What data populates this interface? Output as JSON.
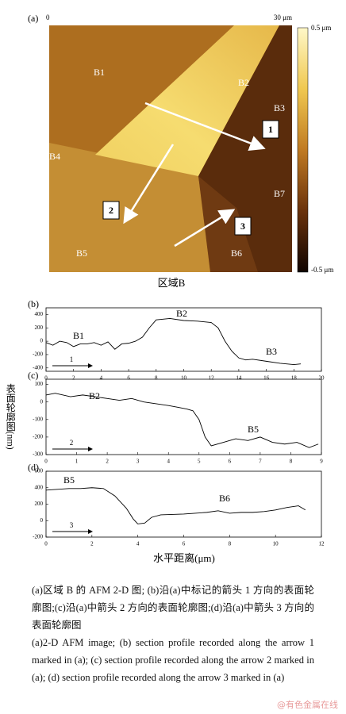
{
  "figure": {
    "panel_label": "(a)",
    "x_start": "0",
    "x_end": "30 μm",
    "colorbar_max": "0.5 μm",
    "colorbar_min": "-0.5 μm",
    "regions": [
      "B1",
      "B2",
      "B3",
      "B4",
      "B5",
      "B6",
      "B7"
    ],
    "arrows": [
      "1",
      "2",
      "3"
    ],
    "image_caption": "区域B"
  },
  "chart_data": [
    {
      "type": "line",
      "panel_label": "(b)",
      "annotations": [
        "B1",
        "B2",
        "B3"
      ],
      "arrow_label": "1",
      "x": [
        0,
        0.5,
        1,
        1.5,
        2,
        2.5,
        3,
        3.5,
        4,
        4.5,
        5,
        5.5,
        6,
        6.5,
        7,
        7.5,
        8,
        9,
        10,
        11,
        12,
        12.5,
        13,
        13.5,
        14,
        14.5,
        15,
        16,
        17,
        18,
        18.5
      ],
      "series": [
        {
          "color": "#000000",
          "values": [
            -20,
            -60,
            0,
            -20,
            -80,
            -40,
            -40,
            -20,
            -60,
            -10,
            -120,
            -40,
            -30,
            0,
            60,
            200,
            320,
            340,
            310,
            300,
            280,
            200,
            0,
            -150,
            -250,
            -280,
            -270,
            -300,
            -330,
            -350,
            -340
          ]
        }
      ],
      "xlim": [
        0,
        20
      ],
      "xticks": [
        0,
        2,
        4,
        6,
        8,
        10,
        12,
        14,
        16,
        18,
        20
      ],
      "ylim": [
        -450,
        500
      ],
      "yticks": [
        400,
        200,
        0,
        -200,
        -400
      ]
    },
    {
      "type": "line",
      "panel_label": "(c)",
      "annotations": [
        "B2",
        "B5"
      ],
      "arrow_label": "2",
      "x": [
        0,
        0.3,
        0.8,
        1.2,
        1.6,
        2,
        2.4,
        2.8,
        3.2,
        3.6,
        4,
        4.3,
        4.6,
        4.8,
        5,
        5.2,
        5.4,
        5.8,
        6.2,
        6.6,
        7,
        7.4,
        7.8,
        8.2,
        8.6,
        8.9
      ],
      "series": [
        {
          "color": "#000000",
          "values": [
            40,
            50,
            30,
            40,
            30,
            20,
            10,
            20,
            0,
            -10,
            -20,
            -30,
            -40,
            -50,
            -100,
            -200,
            -250,
            -230,
            -210,
            -220,
            -200,
            -230,
            -240,
            -230,
            -260,
            -240
          ]
        }
      ],
      "xlim": [
        0,
        9
      ],
      "xticks": [
        0,
        1,
        2,
        3,
        4,
        5,
        6,
        7,
        8,
        9
      ],
      "ylim": [
        -300,
        130
      ],
      "yticks": [
        100,
        0,
        -100,
        -200,
        -300
      ]
    },
    {
      "type": "line",
      "panel_label": "(d)",
      "annotations": [
        "B5",
        "B6"
      ],
      "arrow_label": "3",
      "x": [
        0,
        0.5,
        1,
        1.5,
        2,
        2.5,
        3,
        3.5,
        3.8,
        4,
        4.3,
        4.6,
        5,
        6,
        7,
        7.5,
        8,
        8.5,
        9,
        9.5,
        10,
        10.5,
        11,
        11.3
      ],
      "series": [
        {
          "color": "#000000",
          "values": [
            370,
            380,
            390,
            390,
            400,
            390,
            300,
            150,
            20,
            -40,
            -30,
            40,
            70,
            80,
            100,
            120,
            90,
            100,
            100,
            110,
            130,
            160,
            180,
            130
          ]
        }
      ],
      "xlim": [
        0,
        12
      ],
      "xticks": [
        0,
        2,
        4,
        6,
        8,
        10,
        12
      ],
      "ylim": [
        -200,
        600
      ],
      "yticks": [
        600,
        400,
        200,
        0,
        -200
      ]
    }
  ],
  "y_axis_label": "表面轮廓图(nm)",
  "x_axis_label": "水平距离(μm)",
  "caption_zh": "(a)区域 B 的 AFM 2-D 图; (b)沿(a)中标记的箭头 1 方向的表面轮廓图;(c)沿(a)中箭头 2 方向的表面轮廓图;(d)沿(a)中箭头 3 方向的表面轮廓图",
  "caption_en": "(a)2-D AFM image; (b) section profile recorded along the arrow 1 marked in (a); (c) section profile recorded along the arrow 2 marked in (a); (d) section profile recorded along the arrow 3 marked in (a)",
  "watermark": "@有色金属在线"
}
